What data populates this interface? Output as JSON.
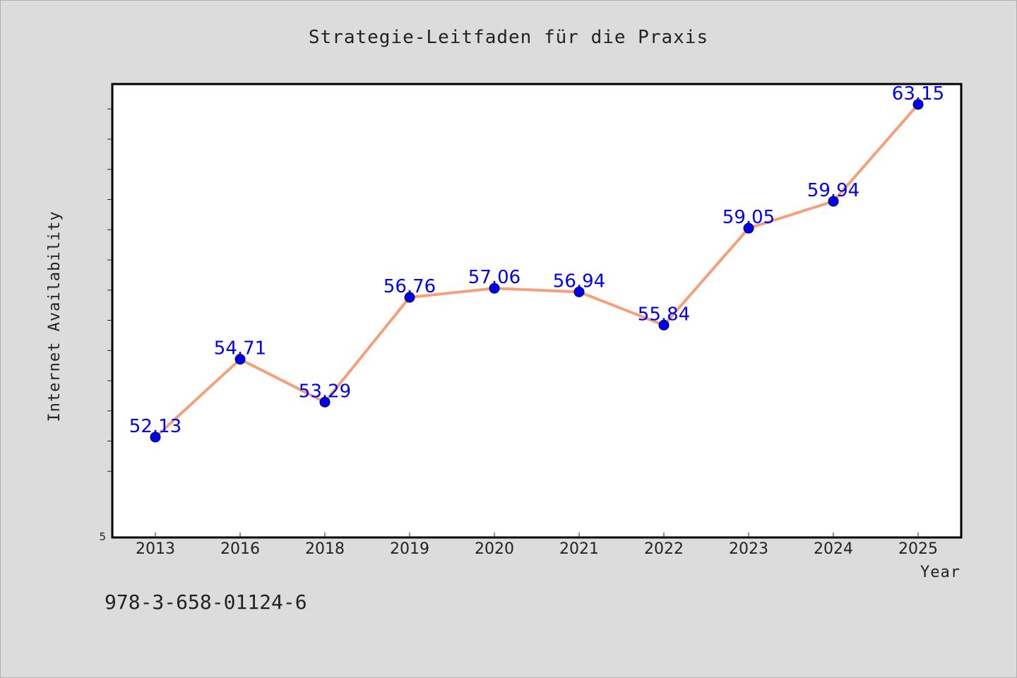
{
  "chart_data": {
    "type": "line",
    "title": "Strategie-Leitfaden für die Praxis",
    "xlabel": "Year",
    "ylabel": "Internet Availability",
    "categories": [
      "2013",
      "2016",
      "2018",
      "2019",
      "2020",
      "2021",
      "2022",
      "2023",
      "2024",
      "2025"
    ],
    "series": [
      {
        "values": [
          52.13,
          54.71,
          53.29,
          56.76,
          57.06,
          56.94,
          55.84,
          59.05,
          59.94,
          63.15
        ],
        "labels": [
          "52.13",
          "54.71",
          "53.29",
          "56.76",
          "57.06",
          "56.94",
          "55.84",
          "59.05",
          "59.94",
          "63.15"
        ],
        "line_color": "#f4a07a",
        "marker_color": "#0000ee"
      }
    ],
    "ylim": [
      50.1,
      65.1
    ],
    "ytick_label": "5",
    "grid": false,
    "legend": "none"
  },
  "footnote": "978-3-658-01124-6"
}
